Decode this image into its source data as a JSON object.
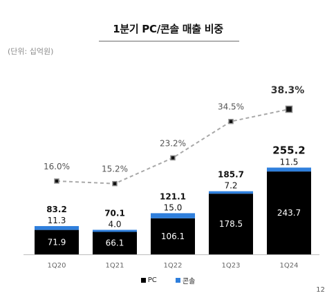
{
  "title": "1분기 PC/콘솔 매출 비중",
  "unit_note": "(단위: 십억원)",
  "page_number": "12",
  "colors": {
    "pc": "#000000",
    "console": "#2f7fdc",
    "ratio_line": "#a8a8a8",
    "marker_fill": "#111111"
  },
  "chart_data": {
    "type": "bar",
    "stacked": true,
    "categories": [
      "1Q20",
      "1Q21",
      "1Q22",
      "1Q23",
      "1Q24"
    ],
    "series": [
      {
        "name": "PC",
        "values": [
          71.9,
          66.1,
          106.1,
          178.5,
          243.7
        ]
      },
      {
        "name": "콘솔",
        "values": [
          11.3,
          4.0,
          15.0,
          7.2,
          11.5
        ]
      }
    ],
    "totals": [
      "83.2",
      "70.1",
      "121.1",
      "185.7",
      "255.2"
    ],
    "pc_labels": [
      "71.9",
      "66.1",
      "106.1",
      "178.5",
      "243.7"
    ],
    "console_labels": [
      "11.3",
      "4.0",
      "15.0",
      "7.2",
      "11.5"
    ],
    "ratio_line": {
      "values": [
        16.0,
        15.2,
        23.2,
        34.5,
        38.3
      ],
      "labels": [
        "16.0%",
        "15.2%",
        "23.2%",
        "34.5%",
        "38.3%"
      ],
      "style": "dashed"
    },
    "legend": {
      "items": [
        "PC",
        "콘솔"
      ],
      "position": "bottom-center"
    }
  }
}
